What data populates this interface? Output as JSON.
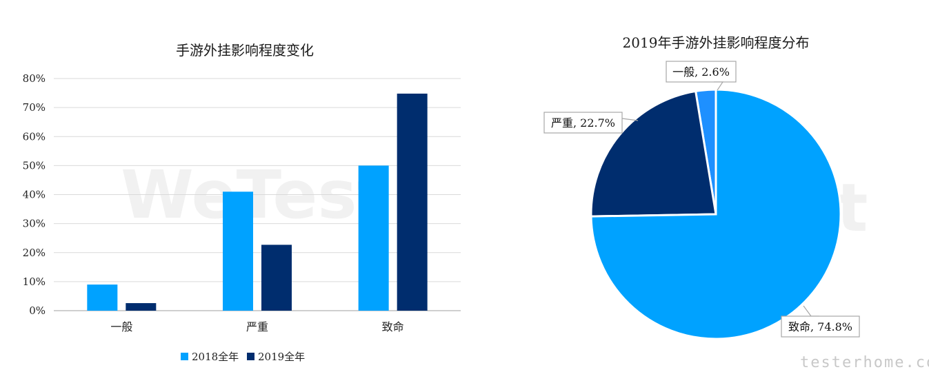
{
  "chart_data": [
    {
      "type": "bar",
      "title": "手游外挂影响程度变化",
      "categories": [
        "一般",
        "严重",
        "致命"
      ],
      "series": [
        {
          "name": "2018全年",
          "values": [
            9.0,
            41.0,
            50.0
          ]
        },
        {
          "name": "2019全年",
          "values": [
            2.6,
            22.7,
            74.8
          ]
        }
      ],
      "yticks": [
        "0%",
        "10%",
        "20%",
        "30%",
        "40%",
        "50%",
        "60%",
        "70%",
        "80%"
      ],
      "ylim": [
        0,
        80
      ],
      "grid": true,
      "legend_position": "bottom",
      "colors": [
        "#00a2ff",
        "#002d6e"
      ]
    },
    {
      "type": "pie",
      "title": "2019年手游外挂影响程度分布",
      "slices": [
        {
          "label": "一般",
          "value": 2.6,
          "text": "一般, 2.6%",
          "color": "#1e90ff"
        },
        {
          "label": "严重",
          "value": 22.7,
          "text": "严重, 22.7%",
          "color": "#002d6e"
        },
        {
          "label": "致命",
          "value": 74.8,
          "text": "致命, 74.8%",
          "color": "#00a2ff"
        }
      ]
    }
  ],
  "watermarks": {
    "center": "WeTest",
    "corner": "testerhome.com"
  }
}
